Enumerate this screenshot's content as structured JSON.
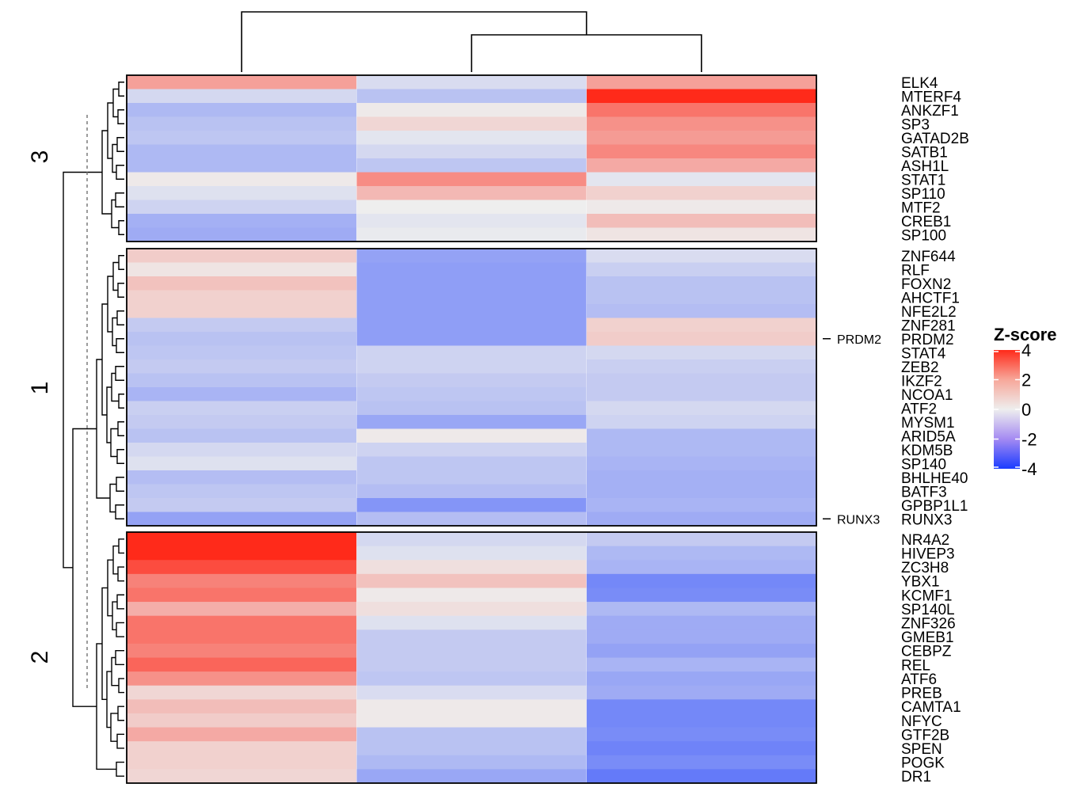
{
  "chart_data": {
    "type": "heatmap",
    "columns": [
      "",
      "",
      ""
    ],
    "legend": {
      "title": "Z-score",
      "ticks": [
        4,
        2,
        0,
        -2,
        -4
      ],
      "range": [
        -4,
        4
      ],
      "colors": {
        "low": "#1a3cff",
        "mid": "#eeeeee",
        "high": "#ff2a1a"
      }
    },
    "row_annotations": [
      "PRDM2",
      "RUNX3"
    ],
    "clusters": [
      {
        "label": "3",
        "rows": [
          {
            "gene": "ELK4",
            "values": [
              1.6,
              -0.4,
              1.6
            ]
          },
          {
            "gene": "MTERF4",
            "values": [
              -0.5,
              -1.0,
              4.0
            ]
          },
          {
            "gene": "ANKZF1",
            "values": [
              -1.2,
              0.1,
              2.5
            ]
          },
          {
            "gene": "SP3",
            "values": [
              -1.0,
              0.5,
              1.9
            ]
          },
          {
            "gene": "GATAD2B",
            "values": [
              -0.9,
              -0.2,
              1.7
            ]
          },
          {
            "gene": "SATB1",
            "values": [
              -1.2,
              -0.5,
              2.1
            ]
          },
          {
            "gene": "ASH1L",
            "values": [
              -1.2,
              -0.9,
              1.4
            ]
          },
          {
            "gene": "STAT1",
            "values": [
              0.1,
              2.0,
              -0.2
            ]
          },
          {
            "gene": "SP110",
            "values": [
              -0.3,
              1.1,
              0.6
            ]
          },
          {
            "gene": "MTF2",
            "values": [
              -0.6,
              0.0,
              0.1
            ]
          },
          {
            "gene": "CREB1",
            "values": [
              -1.4,
              -0.2,
              1.0
            ]
          },
          {
            "gene": "SP100",
            "values": [
              -1.5,
              -0.1,
              0.2
            ]
          }
        ]
      },
      {
        "label": "1",
        "rows": [
          {
            "gene": "ZNF644",
            "values": [
              0.7,
              -1.7,
              -0.4
            ]
          },
          {
            "gene": "RLF",
            "values": [
              0.2,
              -1.8,
              -0.7
            ]
          },
          {
            "gene": "FOXN2",
            "values": [
              0.9,
              -1.8,
              -1.0
            ]
          },
          {
            "gene": "AHCTF1",
            "values": [
              0.6,
              -1.8,
              -1.0
            ]
          },
          {
            "gene": "NFE2L2",
            "values": [
              0.6,
              -1.8,
              -1.1
            ]
          },
          {
            "gene": "ZNF281",
            "values": [
              -0.8,
              -1.8,
              0.6
            ]
          },
          {
            "gene": "PRDM2",
            "values": [
              -1.0,
              -1.8,
              0.7
            ]
          },
          {
            "gene": "STAT4",
            "values": [
              -0.9,
              -0.6,
              -0.5
            ]
          },
          {
            "gene": "ZEB2",
            "values": [
              -0.8,
              -0.6,
              -0.7
            ]
          },
          {
            "gene": "IKZF2",
            "values": [
              -1.0,
              -0.8,
              -0.8
            ]
          },
          {
            "gene": "NCOA1",
            "values": [
              -1.3,
              -0.9,
              -0.8
            ]
          },
          {
            "gene": "ATF2",
            "values": [
              -0.7,
              -1.0,
              -0.5
            ]
          },
          {
            "gene": "MYSM1",
            "values": [
              -0.8,
              -1.6,
              -0.6
            ]
          },
          {
            "gene": "ARID5A",
            "values": [
              -1.0,
              0.1,
              -1.2
            ]
          },
          {
            "gene": "KDM5B",
            "values": [
              -0.5,
              -0.6,
              -1.2
            ]
          },
          {
            "gene": "SP140",
            "values": [
              -0.3,
              -0.9,
              -1.3
            ]
          },
          {
            "gene": "BHLHE40",
            "values": [
              -1.1,
              -0.9,
              -1.4
            ]
          },
          {
            "gene": "BATF3",
            "values": [
              -0.9,
              -1.1,
              -1.4
            ]
          },
          {
            "gene": "GPBP1L1",
            "values": [
              -0.8,
              -2.0,
              -1.3
            ]
          },
          {
            "gene": "RUNX3",
            "values": [
              -1.7,
              -1.1,
              -1.5
            ]
          }
        ]
      },
      {
        "label": "2",
        "rows": [
          {
            "gene": "NR4A2",
            "values": [
              4.0,
              -0.5,
              -0.8
            ]
          },
          {
            "gene": "HIVEP3",
            "values": [
              4.0,
              -0.3,
              -1.2
            ]
          },
          {
            "gene": "ZC3H8",
            "values": [
              3.3,
              0.3,
              -1.3
            ]
          },
          {
            "gene": "YBX1",
            "values": [
              2.2,
              0.9,
              -2.3
            ]
          },
          {
            "gene": "KCMF1",
            "values": [
              2.5,
              0.1,
              -2.2
            ]
          },
          {
            "gene": "SP140L",
            "values": [
              1.3,
              0.3,
              -1.2
            ]
          },
          {
            "gene": "ZNF326",
            "values": [
              2.5,
              -0.3,
              -1.5
            ]
          },
          {
            "gene": "GMEB1",
            "values": [
              2.5,
              -0.8,
              -1.5
            ]
          },
          {
            "gene": "CEBPZ",
            "values": [
              2.2,
              -0.8,
              -1.7
            ]
          },
          {
            "gene": "REL",
            "values": [
              2.8,
              -0.8,
              -1.3
            ]
          },
          {
            "gene": "ATF6",
            "values": [
              1.9,
              -0.9,
              -1.6
            ]
          },
          {
            "gene": "PREB",
            "values": [
              0.5,
              -0.4,
              -1.5
            ]
          },
          {
            "gene": "CAMTA1",
            "values": [
              1.0,
              0.1,
              -2.3
            ]
          },
          {
            "gene": "NFYC",
            "values": [
              0.7,
              0.1,
              -2.3
            ]
          },
          {
            "gene": "GTF2B",
            "values": [
              1.4,
              -1.0,
              -2.2
            ]
          },
          {
            "gene": "SPEN",
            "values": [
              0.6,
              -1.0,
              -2.4
            ]
          },
          {
            "gene": "POGK",
            "values": [
              0.6,
              -1.2,
              -2.2
            ]
          },
          {
            "gene": "DR1",
            "values": [
              0.5,
              -1.6,
              -2.6
            ]
          }
        ]
      }
    ]
  }
}
